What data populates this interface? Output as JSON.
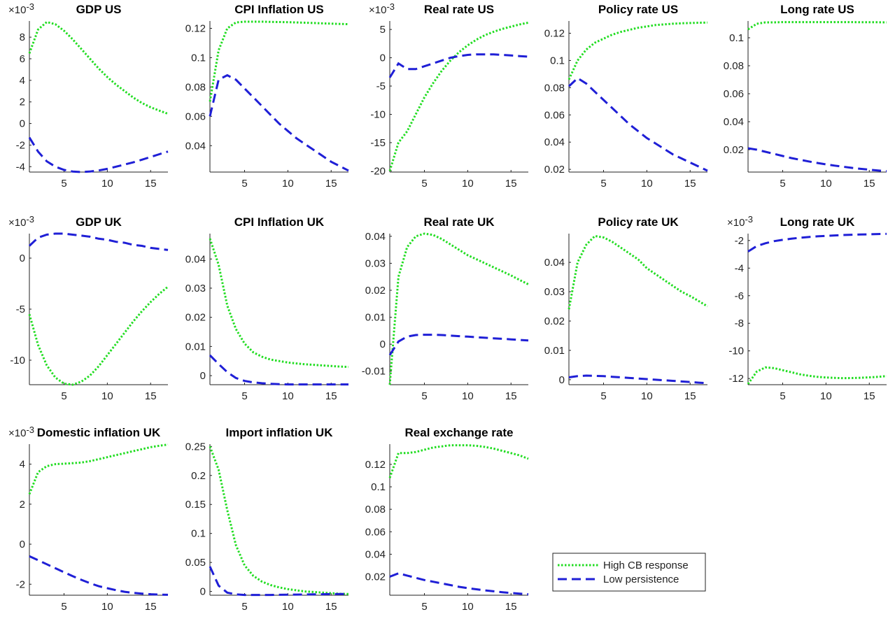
{
  "legend": [
    "High CB response",
    "Low persistence"
  ],
  "chart_data": [
    {
      "type": "line",
      "title": "GDP US",
      "y_multiplier": {
        "base": "×10",
        "exponent": "-3"
      },
      "x": [
        1,
        2,
        3,
        4,
        5,
        6,
        7,
        8,
        9,
        10,
        11,
        12,
        13,
        14,
        15,
        16,
        17
      ],
      "xlim": [
        1,
        17
      ],
      "xticks": [
        5,
        10,
        15
      ],
      "ylim": [
        -4.5,
        9.5
      ],
      "yticks": [
        -4,
        -2,
        0,
        2,
        4,
        6,
        8
      ],
      "series": [
        {
          "color": "#22dd22",
          "dash": "dotted",
          "values": [
            6.5,
            8.7,
            9.4,
            9.2,
            8.6,
            7.8,
            6.9,
            6.0,
            5.1,
            4.3,
            3.6,
            3.0,
            2.4,
            1.9,
            1.5,
            1.2,
            0.9
          ]
        },
        {
          "color": "#1f1fd6",
          "dash": "dashed",
          "values": [
            -1.3,
            -2.6,
            -3.5,
            -4.0,
            -4.3,
            -4.45,
            -4.5,
            -4.45,
            -4.35,
            -4.2,
            -4.0,
            -3.8,
            -3.6,
            -3.35,
            -3.1,
            -2.85,
            -2.6
          ]
        }
      ]
    },
    {
      "type": "line",
      "title": "CPI Inflation US",
      "x": [
        1,
        2,
        3,
        4,
        5,
        6,
        7,
        8,
        9,
        10,
        11,
        12,
        13,
        14,
        15,
        16,
        17
      ],
      "xlim": [
        1,
        17
      ],
      "xticks": [
        5,
        10,
        15
      ],
      "ylim": [
        0.022,
        0.125
      ],
      "yticks": [
        0.04,
        0.06,
        0.08,
        0.1,
        0.12
      ],
      "series": [
        {
          "color": "#22dd22",
          "dash": "dotted",
          "values": [
            0.07,
            0.105,
            0.12,
            0.124,
            0.1245,
            0.1245,
            0.1245,
            0.1244,
            0.1243,
            0.1242,
            0.124,
            0.1238,
            0.1236,
            0.1234,
            0.1232,
            0.123,
            0.1228
          ]
        },
        {
          "color": "#1f1fd6",
          "dash": "dashed",
          "values": [
            0.06,
            0.085,
            0.088,
            0.085,
            0.079,
            0.073,
            0.067,
            0.061,
            0.055,
            0.05,
            0.045,
            0.041,
            0.037,
            0.033,
            0.029,
            0.026,
            0.023
          ]
        }
      ]
    },
    {
      "type": "line",
      "title": "Real rate US",
      "y_multiplier": {
        "base": "×10",
        "exponent": "-3"
      },
      "x": [
        1,
        2,
        3,
        4,
        5,
        6,
        7,
        8,
        9,
        10,
        11,
        12,
        13,
        14,
        15,
        16,
        17
      ],
      "xlim": [
        1,
        17
      ],
      "xticks": [
        5,
        10,
        15
      ],
      "ylim": [
        -20.2,
        6.5
      ],
      "yticks": [
        -20,
        -15,
        -10,
        -5,
        0,
        5
      ],
      "series": [
        {
          "color": "#22dd22",
          "dash": "dotted",
          "values": [
            -20,
            -15,
            -13,
            -10,
            -7,
            -4.5,
            -2.3,
            -0.5,
            1,
            2.2,
            3.2,
            4,
            4.6,
            5.1,
            5.5,
            5.9,
            6.2
          ]
        },
        {
          "color": "#1f1fd6",
          "dash": "dashed",
          "values": [
            -3.5,
            -1,
            -2,
            -2,
            -1.5,
            -1,
            -0.5,
            0,
            0.3,
            0.5,
            0.6,
            0.6,
            0.6,
            0.5,
            0.4,
            0.3,
            0.2
          ]
        }
      ]
    },
    {
      "type": "line",
      "title": "Policy rate US",
      "x": [
        1,
        2,
        3,
        4,
        5,
        6,
        7,
        8,
        9,
        10,
        11,
        12,
        13,
        14,
        15,
        16,
        17
      ],
      "xlim": [
        1,
        17
      ],
      "xticks": [
        5,
        10,
        15
      ],
      "ylim": [
        0.018,
        0.129
      ],
      "yticks": [
        0.02,
        0.04,
        0.06,
        0.08,
        0.1,
        0.12
      ],
      "series": [
        {
          "color": "#22dd22",
          "dash": "dotted",
          "values": [
            0.086,
            0.1,
            0.108,
            0.113,
            0.116,
            0.119,
            0.121,
            0.1225,
            0.124,
            0.125,
            0.126,
            0.1265,
            0.127,
            0.1273,
            0.1275,
            0.1277,
            0.1278
          ]
        },
        {
          "color": "#1f1fd6",
          "dash": "dashed",
          "values": [
            0.081,
            0.087,
            0.083,
            0.077,
            0.071,
            0.065,
            0.059,
            0.053,
            0.048,
            0.043,
            0.039,
            0.035,
            0.031,
            0.028,
            0.025,
            0.022,
            0.019
          ]
        }
      ]
    },
    {
      "type": "line",
      "title": "Long rate US",
      "x": [
        1,
        2,
        3,
        4,
        5,
        6,
        7,
        8,
        9,
        10,
        11,
        12,
        13,
        14,
        15,
        16,
        17
      ],
      "xlim": [
        1,
        17
      ],
      "xticks": [
        5,
        10,
        15
      ],
      "ylim": [
        0.004,
        0.112
      ],
      "yticks": [
        0.02,
        0.04,
        0.06,
        0.08,
        0.1
      ],
      "series": [
        {
          "color": "#22dd22",
          "dash": "dotted",
          "values": [
            0.106,
            0.11,
            0.111,
            0.111,
            0.1112,
            0.1112,
            0.1112,
            0.1112,
            0.1112,
            0.1112,
            0.1112,
            0.1112,
            0.1112,
            0.1111,
            0.1111,
            0.1111,
            0.111
          ]
        },
        {
          "color": "#1f1fd6",
          "dash": "dashed",
          "values": [
            0.021,
            0.02,
            0.0185,
            0.017,
            0.0155,
            0.014,
            0.0128,
            0.0116,
            0.0105,
            0.0095,
            0.0086,
            0.0078,
            0.007,
            0.0063,
            0.0057,
            0.0051,
            0.0046
          ]
        }
      ]
    },
    {
      "type": "line",
      "title": "GDP UK",
      "y_multiplier": {
        "base": "×10",
        "exponent": "-3"
      },
      "x": [
        1,
        2,
        3,
        4,
        5,
        6,
        7,
        8,
        9,
        10,
        11,
        12,
        13,
        14,
        15,
        16,
        17
      ],
      "xlim": [
        1,
        17
      ],
      "xticks": [
        5,
        10,
        15
      ],
      "ylim": [
        -12.4,
        2.4
      ],
      "yticks": [
        -10,
        -5,
        0
      ],
      "series": [
        {
          "color": "#22dd22",
          "dash": "dotted",
          "values": [
            -5.5,
            -8.5,
            -10.5,
            -11.7,
            -12.3,
            -12.4,
            -12.1,
            -11.5,
            -10.6,
            -9.5,
            -8.4,
            -7.3,
            -6.2,
            -5.2,
            -4.3,
            -3.5,
            -2.8
          ]
        },
        {
          "color": "#1f1fd6",
          "dash": "dashed",
          "values": [
            1.2,
            2.0,
            2.3,
            2.4,
            2.4,
            2.3,
            2.2,
            2.1,
            1.9,
            1.8,
            1.6,
            1.5,
            1.3,
            1.2,
            1.0,
            0.9,
            0.8
          ]
        }
      ]
    },
    {
      "type": "line",
      "title": "CPI Inflation UK",
      "x": [
        1,
        2,
        3,
        4,
        5,
        6,
        7,
        8,
        9,
        10,
        11,
        12,
        13,
        14,
        15,
        16,
        17
      ],
      "xlim": [
        1,
        17
      ],
      "xticks": [
        5,
        10,
        15
      ],
      "ylim": [
        -0.0031,
        0.0487
      ],
      "yticks": [
        0,
        0.01,
        0.02,
        0.03,
        0.04
      ],
      "series": [
        {
          "color": "#22dd22",
          "dash": "dotted",
          "values": [
            0.047,
            0.038,
            0.024,
            0.016,
            0.011,
            0.008,
            0.0065,
            0.0055,
            0.005,
            0.0045,
            0.0042,
            0.0039,
            0.0037,
            0.0035,
            0.0033,
            0.0031,
            0.003
          ]
        },
        {
          "color": "#1f1fd6",
          "dash": "dashed",
          "values": [
            0.007,
            0.004,
            0.0012,
            -0.0008,
            -0.0018,
            -0.0023,
            -0.0026,
            -0.0028,
            -0.0029,
            -0.003,
            -0.003,
            -0.003,
            -0.003,
            -0.003,
            -0.003,
            -0.003,
            -0.003
          ]
        }
      ]
    },
    {
      "type": "line",
      "title": "Real rate UK",
      "x": [
        1,
        2,
        3,
        4,
        5,
        6,
        7,
        8,
        9,
        10,
        11,
        12,
        13,
        14,
        15,
        16,
        17
      ],
      "xlim": [
        1,
        17
      ],
      "xticks": [
        5,
        10,
        15
      ],
      "ylim": [
        -0.015,
        0.041
      ],
      "yticks": [
        -0.01,
        0,
        0.01,
        0.02,
        0.03,
        0.04
      ],
      "series": [
        {
          "color": "#22dd22",
          "dash": "dotted",
          "values": [
            -0.015,
            0.025,
            0.036,
            0.04,
            0.041,
            0.0405,
            0.039,
            0.037,
            0.035,
            0.033,
            0.0315,
            0.03,
            0.0285,
            0.027,
            0.0255,
            0.0238,
            0.0222
          ]
        },
        {
          "color": "#1f1fd6",
          "dash": "dashed",
          "values": [
            -0.004,
            0.001,
            0.0028,
            0.0034,
            0.0035,
            0.0035,
            0.0034,
            0.0032,
            0.003,
            0.0028,
            0.0026,
            0.0024,
            0.0022,
            0.002,
            0.0018,
            0.0016,
            0.0014
          ]
        }
      ]
    },
    {
      "type": "line",
      "title": "Policy rate UK",
      "x": [
        1,
        2,
        3,
        4,
        5,
        6,
        7,
        8,
        9,
        10,
        11,
        12,
        13,
        14,
        15,
        16,
        17
      ],
      "xlim": [
        1,
        17
      ],
      "xticks": [
        5,
        10,
        15
      ],
      "ylim": [
        -0.0017,
        0.0498
      ],
      "yticks": [
        0,
        0.01,
        0.02,
        0.03,
        0.04
      ],
      "series": [
        {
          "color": "#22dd22",
          "dash": "dotted",
          "values": [
            0.024,
            0.04,
            0.046,
            0.049,
            0.0485,
            0.047,
            0.045,
            0.043,
            0.041,
            0.038,
            0.036,
            0.034,
            0.032,
            0.03,
            0.0285,
            0.0268,
            0.025
          ]
        },
        {
          "color": "#1f1fd6",
          "dash": "dashed",
          "values": [
            0.0008,
            0.0012,
            0.0014,
            0.0013,
            0.0012,
            0.001,
            0.0008,
            0.0006,
            0.0004,
            0.0002,
            0,
            -0.0002,
            -0.0004,
            -0.0006,
            -0.0008,
            -0.001,
            -0.0012
          ]
        }
      ]
    },
    {
      "type": "line",
      "title": "Long rate UK",
      "y_multiplier": {
        "base": "×10",
        "exponent": "-3"
      },
      "x": [
        1,
        2,
        3,
        4,
        5,
        6,
        7,
        8,
        9,
        10,
        11,
        12,
        13,
        14,
        15,
        16,
        17
      ],
      "xlim": [
        1,
        17
      ],
      "xticks": [
        5,
        10,
        15
      ],
      "ylim": [
        -12.45,
        -1.5
      ],
      "yticks": [
        -12,
        -10,
        -8,
        -6,
        -4,
        -2
      ],
      "series": [
        {
          "color": "#22dd22",
          "dash": "dotted",
          "values": [
            -12.4,
            -11.5,
            -11.2,
            -11.25,
            -11.4,
            -11.55,
            -11.7,
            -11.8,
            -11.88,
            -11.93,
            -11.96,
            -11.98,
            -11.97,
            -11.95,
            -11.92,
            -11.88,
            -11.82
          ]
        },
        {
          "color": "#1f1fd6",
          "dash": "dashed",
          "values": [
            -2.8,
            -2.4,
            -2.2,
            -2.05,
            -1.95,
            -1.87,
            -1.8,
            -1.75,
            -1.7,
            -1.66,
            -1.63,
            -1.6,
            -1.58,
            -1.56,
            -1.55,
            -1.53,
            -1.52
          ]
        }
      ]
    },
    {
      "type": "line",
      "title": "Domestic inflation UK",
      "y_multiplier": {
        "base": "×10",
        "exponent": "-3"
      },
      "x": [
        1,
        2,
        3,
        4,
        5,
        6,
        7,
        8,
        9,
        10,
        11,
        12,
        13,
        14,
        15,
        16,
        17
      ],
      "xlim": [
        1,
        17
      ],
      "xticks": [
        5,
        10,
        15
      ],
      "ylim": [
        -2.55,
        5.0
      ],
      "yticks": [
        -2,
        0,
        2,
        4
      ],
      "series": [
        {
          "color": "#22dd22",
          "dash": "dotted",
          "values": [
            2.5,
            3.6,
            3.9,
            4.0,
            4.02,
            4.05,
            4.08,
            4.15,
            4.25,
            4.35,
            4.45,
            4.55,
            4.65,
            4.75,
            4.85,
            4.92,
            4.98
          ]
        },
        {
          "color": "#1f1fd6",
          "dash": "dashed",
          "values": [
            -0.6,
            -0.8,
            -1.0,
            -1.2,
            -1.4,
            -1.6,
            -1.78,
            -1.95,
            -2.1,
            -2.2,
            -2.3,
            -2.38,
            -2.43,
            -2.47,
            -2.5,
            -2.52,
            -2.53
          ]
        }
      ]
    },
    {
      "type": "line",
      "title": "Import inflation UK",
      "x": [
        1,
        2,
        3,
        4,
        5,
        6,
        7,
        8,
        9,
        10,
        11,
        12,
        13,
        14,
        15,
        16,
        17
      ],
      "xlim": [
        1,
        17
      ],
      "xticks": [
        5,
        10,
        15
      ],
      "ylim": [
        -0.0065,
        0.254
      ],
      "yticks": [
        0,
        0.05,
        0.1,
        0.15,
        0.2,
        0.25
      ],
      "series": [
        {
          "color": "#22dd22",
          "dash": "dotted",
          "values": [
            0.25,
            0.21,
            0.14,
            0.08,
            0.045,
            0.027,
            0.017,
            0.011,
            0.007,
            0.004,
            0.002,
            0,
            -0.001,
            -0.002,
            -0.003,
            -0.004,
            -0.0045
          ]
        },
        {
          "color": "#1f1fd6",
          "dash": "dashed",
          "values": [
            0.043,
            0.01,
            -0.002,
            -0.005,
            -0.006,
            -0.006,
            -0.006,
            -0.006,
            -0.0058,
            -0.0056,
            -0.0054,
            -0.0052,
            -0.005,
            -0.0048,
            -0.0046,
            -0.0045,
            -0.0044
          ]
        }
      ]
    },
    {
      "type": "line",
      "title": "Real exchange rate",
      "x": [
        1,
        2,
        3,
        4,
        5,
        6,
        7,
        8,
        9,
        10,
        11,
        12,
        13,
        14,
        15,
        16,
        17
      ],
      "xlim": [
        1,
        17
      ],
      "xticks": [
        5,
        10,
        15
      ],
      "ylim": [
        0.0035,
        0.138
      ],
      "yticks": [
        0.02,
        0.04,
        0.06,
        0.08,
        0.1,
        0.12
      ],
      "series": [
        {
          "color": "#22dd22",
          "dash": "dotted",
          "values": [
            0.108,
            0.13,
            0.13,
            0.131,
            0.133,
            0.135,
            0.136,
            0.137,
            0.137,
            0.137,
            0.1365,
            0.1355,
            0.134,
            0.132,
            0.13,
            0.128,
            0.125
          ]
        },
        {
          "color": "#1f1fd6",
          "dash": "dashed",
          "values": [
            0.02,
            0.023,
            0.021,
            0.019,
            0.017,
            0.0155,
            0.014,
            0.0125,
            0.011,
            0.0098,
            0.0088,
            0.0078,
            0.007,
            0.0062,
            0.0055,
            0.0049,
            0.0044
          ]
        }
      ]
    }
  ]
}
